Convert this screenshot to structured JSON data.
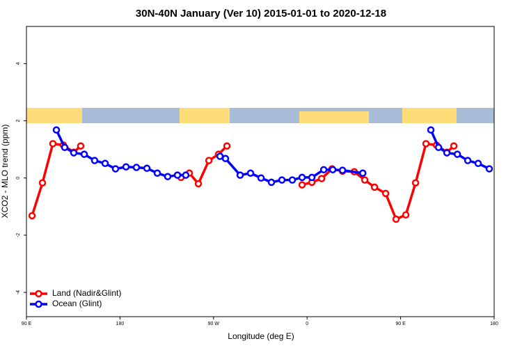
{
  "chart_data": {
    "type": "line",
    "title": "30N-40N January (Ver 10)   2015-01-01 to 2020-12-18",
    "x_label": "Longitude (deg E)",
    "y_label": "XCO2 - MLO trend (ppm)",
    "xlim": [
      90,
      540
    ],
    "xticks": [
      {
        "value": 90,
        "label": "90 E"
      },
      180,
      {
        "value": 270,
        "label": "90 W"
      },
      {
        "value": 360,
        "label": "0"
      },
      {
        "value": 450,
        "label": "90 E"
      },
      {
        "value": 540,
        "label": "180"
      }
    ],
    "ylim": [
      -4.85,
      5.3
    ],
    "yticks": [
      -4,
      -2,
      0,
      2,
      4
    ],
    "legend": "bottom-left",
    "series": [
      {
        "name": "Land (Nadir&Glint)",
        "color": "#ff0000",
        "x": [
          95.4,
          105.4,
          115.4,
          125.5,
          135.5,
          142.2,
          null,
          238.7,
          246.7,
          255.4,
          265.5,
          274.8,
          282.9,
          null,
          355.2,
          364.6,
          374,
          384,
          394.1,
          405.4,
          415.5,
          424.9,
          435.6,
          445.6,
          455,
          464.4,
          474.4,
          484.5,
          494.5,
          501.2
        ],
        "values": [
          -1.32,
          -0.17,
          1.2,
          1.15,
          0.9,
          1.12,
          null,
          0.02,
          0.17,
          -0.2,
          0.61,
          0.83,
          1.12,
          null,
          -0.24,
          -0.15,
          -0.02,
          0.32,
          0.24,
          0.22,
          -0.07,
          -0.32,
          -0.54,
          -1.44,
          -1.29,
          -0.17,
          1.2,
          1.15,
          0.9,
          1.12
        ]
      },
      {
        "name": "Ocean (Glint)",
        "color": "#0000ff",
        "x": [
          118.8,
          126.8,
          135.5,
          145.6,
          155.6,
          165.7,
          175.7,
          185.8,
          195.8,
          205.9,
          215.9,
          225.9,
          235.3,
          243.3,
          null,
          276.2,
          281.5,
          295.6,
          305.6,
          315.7,
          325.7,
          335.8,
          345.8,
          355.2,
          364.6,
          376,
          384.7,
          394.1,
          413.6,
          null,
          479.1,
          486.5,
          494.5,
          504.6,
          514.6,
          524.6,
          535.3
        ],
        "values": [
          1.68,
          1.07,
          0.88,
          0.83,
          0.61,
          0.51,
          0.32,
          0.39,
          0.37,
          0.34,
          0.17,
          0.05,
          0.1,
          0.1,
          null,
          0.76,
          0.68,
          0.1,
          0.17,
          0,
          -0.15,
          -0.07,
          -0.07,
          0.02,
          0.02,
          0.29,
          0.29,
          0.27,
          0.17,
          null,
          1.68,
          1.07,
          0.88,
          0.83,
          0.61,
          0.51,
          0.32
        ]
      }
    ]
  }
}
